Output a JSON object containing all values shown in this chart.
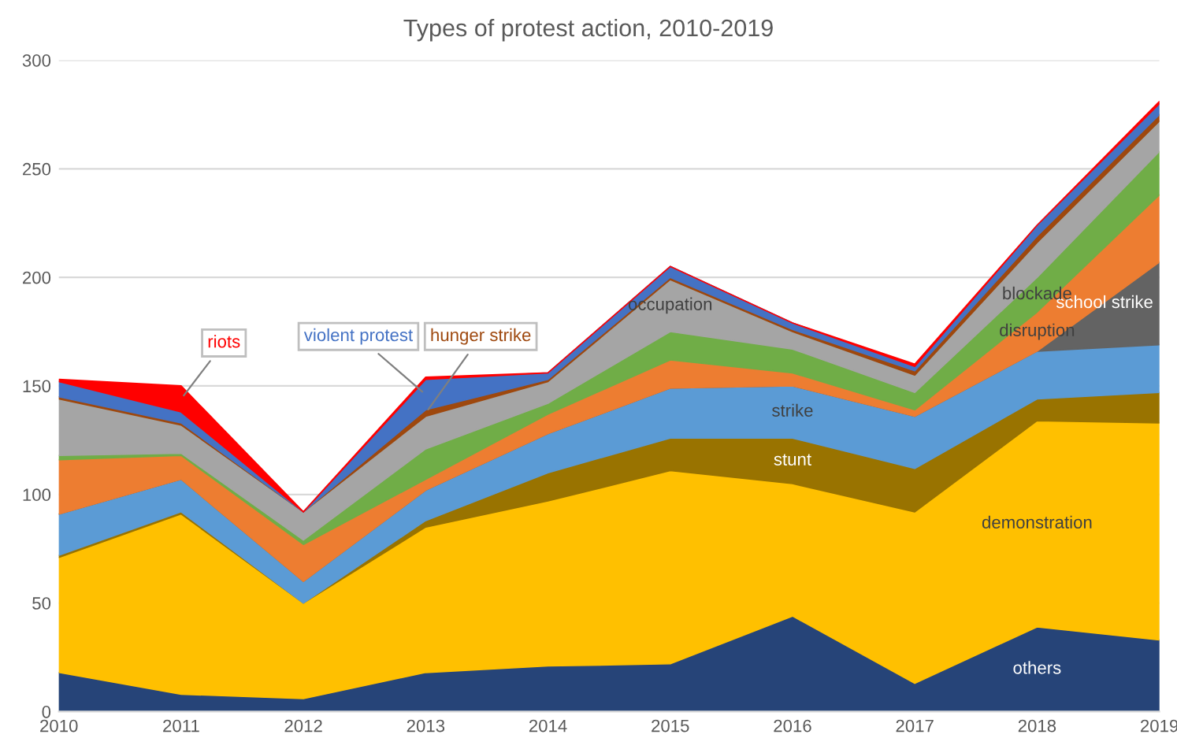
{
  "chart_data": {
    "type": "area",
    "stacked": true,
    "title": "Types of protest action, 2010-2019",
    "x": [
      2010,
      2011,
      2012,
      2013,
      2014,
      2015,
      2016,
      2017,
      2018,
      2019
    ],
    "xlim": [
      2010,
      2019
    ],
    "xticks": [
      2010,
      2011,
      2012,
      2013,
      2014,
      2015,
      2016,
      2017,
      2018,
      2019
    ],
    "ylim": [
      0,
      300
    ],
    "yticks": [
      0,
      50,
      100,
      150,
      200,
      250,
      300
    ],
    "grid": "y",
    "legend": false,
    "series": [
      {
        "name": "others",
        "color": "#264478",
        "values": [
          18,
          8,
          6,
          18,
          21,
          22,
          44,
          13,
          39,
          33
        ]
      },
      {
        "name": "demonstration",
        "color": "#ffc000",
        "values": [
          53,
          83,
          44,
          67,
          76,
          89,
          61,
          79,
          95,
          100
        ]
      },
      {
        "name": "stunt",
        "color": "#997300",
        "values": [
          1,
          1,
          0,
          3,
          13,
          15,
          21,
          20,
          10,
          14
        ]
      },
      {
        "name": "strike",
        "color": "#5b9bd5",
        "values": [
          19,
          15,
          10,
          14,
          18,
          23,
          24,
          24,
          22,
          22
        ]
      },
      {
        "name": "school strike",
        "color": "#636363",
        "values": [
          0,
          0,
          0,
          0,
          0,
          0,
          0,
          0,
          0,
          38
        ]
      },
      {
        "name": "disruption",
        "color": "#ed7d31",
        "values": [
          25,
          11,
          17,
          5,
          9,
          13,
          6,
          3,
          18,
          31
        ]
      },
      {
        "name": "blockade",
        "color": "#70ad47",
        "values": [
          2,
          1,
          2,
          14,
          5,
          13,
          11,
          8,
          16,
          20
        ]
      },
      {
        "name": "occupation",
        "color": "#a5a5a5",
        "values": [
          26,
          13,
          13,
          15,
          10,
          24,
          8,
          8,
          16,
          14
        ]
      },
      {
        "name": "hunger strike",
        "color": "#9e480e",
        "values": [
          1,
          1,
          0,
          3,
          1,
          1,
          1,
          2,
          3,
          3
        ]
      },
      {
        "name": "violent protest",
        "color": "#4472c4",
        "values": [
          7,
          5,
          0,
          14,
          3,
          5,
          3,
          2,
          5,
          5
        ]
      },
      {
        "name": "riots",
        "color": "#ff0000",
        "values": [
          1,
          12,
          0,
          1,
          0,
          0,
          0,
          1,
          0,
          1
        ]
      }
    ]
  }
}
